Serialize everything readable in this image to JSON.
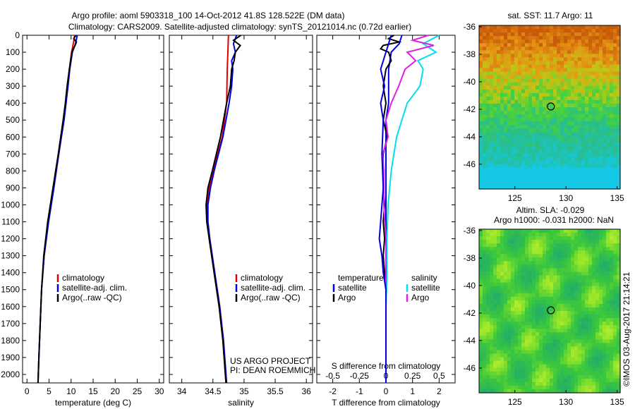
{
  "title_line1": "Argo profile: aoml 5903318_100 14-Oct-2012 41.8S 128.522E (DM data)",
  "title_line2": "Climatology: CARS2009. Satellite-adjusted climatology: synTS_20121014.nc (0.72d earlier)",
  "side_label": "©IMOS 03-Aug-2017 21:14:21",
  "colors": {
    "climatology": "#e00000",
    "satellite": "#0000e0",
    "argo": "#000000",
    "sat_salinity": "#00e0f0",
    "argo_salinity": "#e020e0"
  },
  "chart_data": [
    {
      "type": "line",
      "xlabel": "temperature (deg C)",
      "xlim": [
        -1,
        31
      ],
      "x_ticks": [
        0,
        5,
        10,
        15,
        20,
        25,
        30
      ],
      "ylim": [
        0,
        2050
      ],
      "y_ticks": [
        0,
        100,
        200,
        300,
        400,
        500,
        600,
        700,
        800,
        900,
        1000,
        1100,
        1200,
        1300,
        1400,
        1500,
        1600,
        1700,
        1800,
        1900,
        2000
      ],
      "legend": [
        "climatology",
        "satellite-adj. clim.",
        "Argo(..raw -QC)"
      ],
      "series": [
        {
          "name": "climatology",
          "depth": [
            0,
            50,
            100,
            200,
            300,
            500,
            700,
            900,
            1100,
            1300,
            1500,
            1700,
            1900,
            2050
          ],
          "values": [
            10.8,
            10.5,
            10.1,
            9.6,
            9.2,
            8.3,
            7.2,
            6.0,
            4.8,
            3.9,
            3.3,
            3.0,
            2.7,
            2.5
          ]
        },
        {
          "name": "satellite-adj. clim.",
          "depth": [
            0,
            50,
            100,
            200,
            300,
            500,
            700,
            900,
            1100,
            1300,
            1500,
            1700,
            1900,
            2050
          ],
          "values": [
            11.4,
            11.0,
            10.3,
            9.7,
            9.3,
            8.4,
            7.2,
            6.1,
            4.9,
            3.9,
            3.3,
            3.0,
            2.7,
            2.5
          ]
        },
        {
          "name": "Argo(..raw -QC)",
          "depth": [
            0,
            20,
            40,
            60,
            80,
            100,
            150,
            200,
            300,
            400,
            500,
            700,
            900,
            1100,
            1300,
            1500,
            1700,
            1900,
            2050
          ],
          "values": [
            11.1,
            10.6,
            11.2,
            10.9,
            10.5,
            10.2,
            9.9,
            9.6,
            9.1,
            8.7,
            8.2,
            7.1,
            5.9,
            4.7,
            3.8,
            3.3,
            3.0,
            2.7,
            2.5
          ]
        }
      ]
    },
    {
      "type": "line",
      "xlabel": "salinity",
      "xlim": [
        33.8,
        36.1
      ],
      "x_ticks": [
        34,
        34.5,
        35,
        35.5,
        36
      ],
      "x_tick_labels": [
        "34",
        "34.5",
        "35",
        "35.5",
        "36"
      ],
      "ylim": [
        0,
        2050
      ],
      "legend": [
        "climatology",
        "satellite-adj. clim.",
        "Argo(..raw -QC)"
      ],
      "annotation": [
        "US ARGO PROJECT",
        "PI: DEAN ROEMMICH"
      ],
      "series": [
        {
          "name": "climatology",
          "depth": [
            0,
            100,
            200,
            400,
            600,
            800,
            900,
            1000,
            1100,
            1200,
            1400,
            1600,
            1800,
            2050
          ],
          "values": [
            34.75,
            34.74,
            34.73,
            34.72,
            34.65,
            34.5,
            34.44,
            34.41,
            34.41,
            34.44,
            34.52,
            34.6,
            34.66,
            34.71
          ]
        },
        {
          "name": "satellite-adj. clim.",
          "depth": [
            0,
            50,
            100,
            150,
            200,
            300,
            400,
            600,
            800,
            900,
            1000,
            1100,
            1200,
            1400,
            1600,
            1800,
            2050
          ],
          "values": [
            34.88,
            34.83,
            34.86,
            34.8,
            34.82,
            34.8,
            34.76,
            34.66,
            34.52,
            34.46,
            34.42,
            34.42,
            34.45,
            34.53,
            34.61,
            34.67,
            34.72
          ]
        },
        {
          "name": "Argo(..raw -QC)",
          "depth": [
            0,
            30,
            60,
            100,
            150,
            200,
            300,
            400,
            600,
            800,
            900,
            1000,
            1100,
            1200,
            1400,
            1600,
            1800,
            2050
          ],
          "values": [
            34.95,
            34.83,
            34.94,
            34.86,
            34.84,
            34.8,
            34.78,
            34.72,
            34.62,
            34.49,
            34.42,
            34.39,
            34.4,
            34.44,
            34.52,
            34.6,
            34.66,
            34.71
          ]
        }
      ]
    },
    {
      "type": "line",
      "xlabel": "T difference from climatology",
      "xlabel_top": "S difference from climatology",
      "xlim": [
        -2.6,
        2.6
      ],
      "x_ticks": [
        -2,
        -1,
        0,
        1,
        2
      ],
      "x_top_ticks": [
        -0.5,
        -0.25,
        0,
        0.25,
        0.5
      ],
      "x_top_tick_labels": [
        "-0.5",
        "-0.25",
        "0",
        "0.25",
        "0.5"
      ],
      "ylim": [
        0,
        2050
      ],
      "legend_headers": [
        "temperature",
        "salinity"
      ],
      "legend": [
        [
          "satellite",
          "Argo"
        ],
        [
          "satellite",
          "Argo"
        ]
      ],
      "series": [
        {
          "name": "satellite",
          "quantity": "temperature",
          "depth": [
            0,
            50,
            100,
            200,
            300,
            400,
            500,
            700,
            900,
            1100,
            1300,
            1500,
            1700,
            2050
          ],
          "values": [
            0.6,
            0.5,
            0.2,
            0.1,
            0.1,
            0.1,
            0.0,
            0.0,
            0.0,
            0.0,
            0.0,
            0.0,
            0.0,
            0.0
          ]
        },
        {
          "name": "Argo",
          "quantity": "temperature",
          "depth": [
            0,
            20,
            40,
            60,
            80,
            100,
            150,
            200,
            300,
            400,
            500,
            600,
            700,
            800,
            900,
            1000,
            1100,
            1200,
            1300,
            1400,
            1500,
            1700,
            2050
          ],
          "values": [
            0.3,
            0.1,
            0.5,
            -0.1,
            -0.2,
            0.1,
            0.2,
            0.0,
            -0.1,
            0.0,
            -0.1,
            0.05,
            -0.1,
            -0.1,
            -0.1,
            -0.05,
            -0.1,
            -0.05,
            -0.1,
            -0.05,
            0.0,
            0.0,
            0.0
          ]
        },
        {
          "name": "satellite",
          "quantity": "salinity",
          "depth": [
            0,
            50,
            100,
            150,
            200,
            300,
            400,
            500,
            600,
            800,
            1000,
            1200,
            1400,
            1600,
            2050
          ],
          "values": [
            0.5,
            0.35,
            0.47,
            0.3,
            0.35,
            0.32,
            0.2,
            0.15,
            0.1,
            0.05,
            0.02,
            0.01,
            0.01,
            0.0,
            0.0
          ]
        },
        {
          "name": "Argo",
          "quantity": "salinity",
          "depth": [
            0,
            30,
            60,
            100,
            150,
            200,
            300,
            400,
            500,
            600,
            700,
            800,
            900,
            1000,
            1200,
            1400,
            1600,
            2050
          ],
          "values": [
            0.4,
            0.25,
            0.45,
            0.2,
            0.28,
            0.18,
            0.12,
            0.05,
            0.0,
            0.02,
            -0.03,
            -0.02,
            -0.02,
            -0.02,
            0.0,
            0.0,
            0.0,
            0.0
          ]
        },
        {
          "name": "Argo",
          "quantity": "temperature-alt",
          "depth": [
            0,
            100,
            200,
            300,
            400,
            450,
            500,
            700,
            900,
            1100,
            1200,
            1300,
            1400,
            1500,
            2050
          ],
          "values": [
            0.2,
            0.0,
            -0.2,
            -0.05,
            -0.2,
            -0.15,
            -0.1,
            -0.15,
            -0.1,
            -0.2,
            -0.25,
            -0.15,
            -0.1,
            0.0,
            0.0
          ]
        }
      ]
    },
    {
      "type": "heatmap",
      "title": "sat. SST: 11.7 Argo: 11",
      "xlim": [
        121.5,
        135.3
      ],
      "ylim": [
        -47.8,
        -35.9
      ],
      "x_ticks": [
        125,
        130,
        135
      ],
      "y_ticks": [
        -36,
        -38,
        -40,
        -42,
        -44,
        -46
      ],
      "marker": {
        "lon": 128.52,
        "lat": -41.8
      }
    },
    {
      "type": "heatmap",
      "title": "Altim. SLA: -0.029",
      "subtitle": "Argo h1000: -0.031 h2000: NaN",
      "xlim": [
        121.5,
        135.3
      ],
      "ylim": [
        -47.8,
        -35.9
      ],
      "x_ticks": [
        125,
        130,
        135
      ],
      "y_ticks": [
        -36,
        -38,
        -40,
        -42,
        -44,
        -46
      ],
      "marker": {
        "lon": 128.52,
        "lat": -41.8
      }
    }
  ]
}
